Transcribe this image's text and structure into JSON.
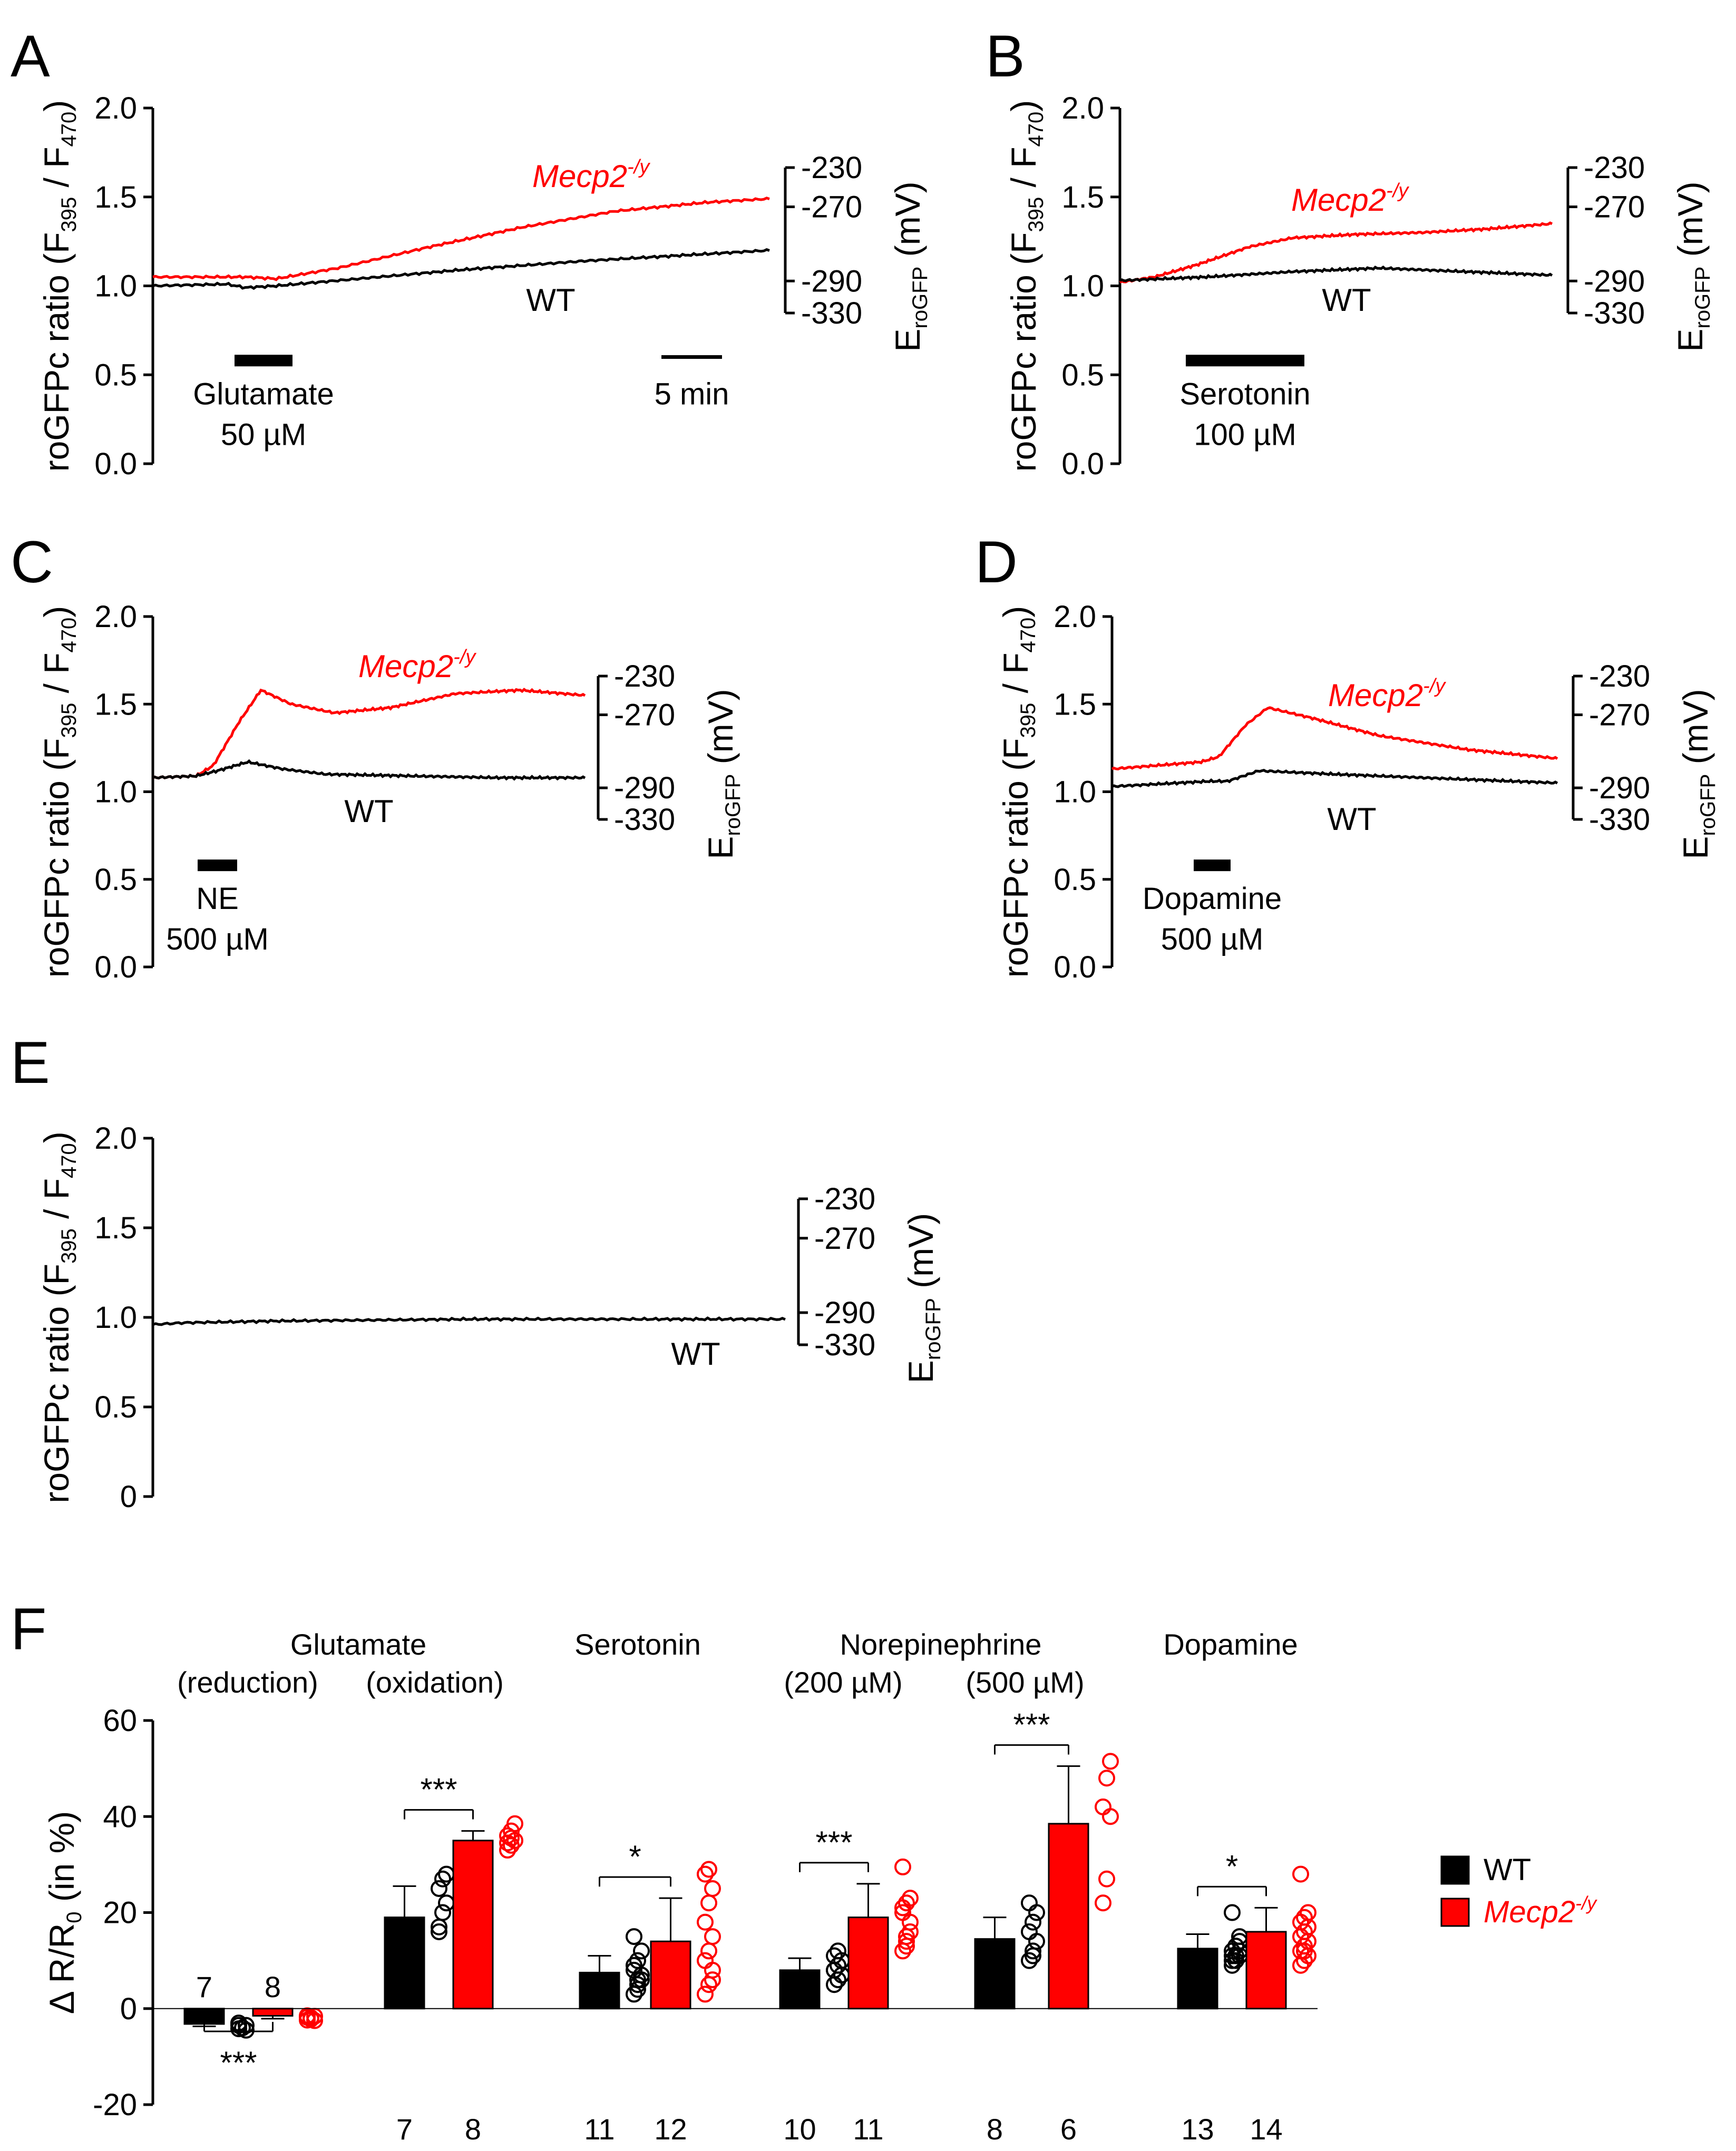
{
  "figure": {
    "ylabel_main": "roGFPc ratio (F",
    "ylabel_sub1": "395",
    "ylabel_mid": " / F",
    "ylabel_sub2": "470",
    "ylabel_end": ")",
    "right_axis_label": "E",
    "right_axis_sub": "roGFP",
    "right_axis_unit": "(mV)",
    "mutant_label": "Mecp2",
    "mutant_sup": "-/y",
    "wt_label": "WT"
  },
  "chart_data": [
    {
      "panel": "A",
      "type": "line",
      "yticks": [
        "2.0",
        "1.5",
        "1.0",
        "0.5",
        "0.0"
      ],
      "ylim": [
        0,
        2
      ],
      "right_ticks": [
        "-230",
        "-270",
        "-290",
        "-330"
      ],
      "stimulus": {
        "name": "Glutamate",
        "conc": "50 µM"
      },
      "scale_bar": "5 min",
      "series": [
        {
          "name": "Mecp2-/y",
          "color": "#ff0000",
          "t": [
            0,
            0.15,
            0.2,
            0.3,
            0.45,
            0.6,
            0.75,
            0.9,
            1.0
          ],
          "y": [
            1.05,
            1.05,
            1.04,
            1.1,
            1.22,
            1.33,
            1.42,
            1.47,
            1.49
          ]
        },
        {
          "name": "WT",
          "color": "#000000",
          "t": [
            0,
            0.12,
            0.15,
            0.2,
            0.3,
            0.5,
            0.7,
            0.9,
            1.0
          ],
          "y": [
            1.0,
            1.01,
            0.99,
            1.0,
            1.03,
            1.09,
            1.14,
            1.18,
            1.2
          ]
        }
      ]
    },
    {
      "panel": "B",
      "type": "line",
      "yticks": [
        "2.0",
        "1.5",
        "1.0",
        "0.5",
        "0.0"
      ],
      "ylim": [
        0,
        2
      ],
      "right_ticks": [
        "-230",
        "-270",
        "-290",
        "-330"
      ],
      "stimulus": {
        "name": "Serotonin",
        "conc": "100 µM"
      },
      "series": [
        {
          "name": "Mecp2-/y",
          "color": "#ff0000",
          "t": [
            0,
            0.08,
            0.18,
            0.3,
            0.4,
            0.55,
            0.7,
            0.85,
            1.0
          ],
          "y": [
            1.02,
            1.05,
            1.12,
            1.22,
            1.27,
            1.29,
            1.3,
            1.32,
            1.35
          ]
        },
        {
          "name": "WT",
          "color": "#000000",
          "t": [
            0,
            0.2,
            0.4,
            0.6,
            0.8,
            1.0
          ],
          "y": [
            1.03,
            1.05,
            1.08,
            1.1,
            1.08,
            1.06
          ]
        }
      ]
    },
    {
      "panel": "C",
      "type": "line",
      "yticks": [
        "2.0",
        "1.5",
        "1.0",
        "0.5",
        "0.0"
      ],
      "ylim": [
        0,
        2
      ],
      "right_ticks": [
        "-230",
        "-270",
        "-290",
        "-330"
      ],
      "stimulus": {
        "name": "NE",
        "conc": "500 µM"
      },
      "series": [
        {
          "name": "Mecp2-/y",
          "color": "#ff0000",
          "t": [
            0,
            0.1,
            0.14,
            0.2,
            0.25,
            0.32,
            0.42,
            0.55,
            0.7,
            0.85,
            1.0
          ],
          "y": [
            1.08,
            1.09,
            1.15,
            1.4,
            1.58,
            1.5,
            1.45,
            1.48,
            1.56,
            1.58,
            1.55
          ]
        },
        {
          "name": "WT",
          "color": "#000000",
          "t": [
            0,
            0.1,
            0.15,
            0.22,
            0.3,
            0.4,
            0.6,
            0.8,
            1.0
          ],
          "y": [
            1.08,
            1.09,
            1.12,
            1.17,
            1.13,
            1.1,
            1.09,
            1.08,
            1.08
          ]
        }
      ]
    },
    {
      "panel": "D",
      "type": "line",
      "yticks": [
        "2.0",
        "1.5",
        "1.0",
        "0.5",
        "0.0"
      ],
      "ylim": [
        0,
        2
      ],
      "right_ticks": [
        "-230",
        "-270",
        "-290",
        "-330"
      ],
      "stimulus": {
        "name": "Dopamine",
        "conc": "500 µM"
      },
      "series": [
        {
          "name": "Mecp2-/y",
          "color": "#ff0000",
          "t": [
            0,
            0.2,
            0.24,
            0.3,
            0.35,
            0.45,
            0.6,
            0.8,
            1.0
          ],
          "y": [
            1.13,
            1.17,
            1.2,
            1.38,
            1.48,
            1.42,
            1.32,
            1.24,
            1.19
          ]
        },
        {
          "name": "WT",
          "color": "#000000",
          "t": [
            0,
            0.22,
            0.26,
            0.33,
            0.5,
            0.7,
            0.9,
            1.0
          ],
          "y": [
            1.03,
            1.06,
            1.06,
            1.12,
            1.1,
            1.08,
            1.06,
            1.05
          ]
        }
      ]
    },
    {
      "panel": "E",
      "type": "line",
      "yticks": [
        "2.0",
        "1.5",
        "1.0",
        "0.5",
        "0"
      ],
      "ylim": [
        0,
        2
      ],
      "right_ticks": [
        "-230",
        "-270",
        "-290",
        "-330"
      ],
      "series": [
        {
          "name": "WT",
          "color": "#000000",
          "t": [
            0,
            0.05,
            0.2,
            0.5,
            0.8,
            1.0
          ],
          "y": [
            0.96,
            0.97,
            0.98,
            0.99,
            0.99,
            0.99
          ]
        }
      ]
    },
    {
      "panel": "F",
      "type": "bar",
      "ylabel": "Δ R/R",
      "ylabel_sub": "0",
      "ylabel_unit": " (in %)",
      "yticks": [
        "60",
        "40",
        "20",
        "0",
        "-20"
      ],
      "ylim": [
        -20,
        60
      ],
      "group_titles": [
        {
          "label": "Glutamate",
          "sub": ""
        },
        {
          "label": "(reduction)",
          "sub": ""
        },
        {
          "label": "(oxidation)",
          "sub": ""
        },
        {
          "label": "Serotonin",
          "sub": ""
        },
        {
          "label": "Norepinephrine",
          "sub": ""
        },
        {
          "label": "(200 µM)",
          "sub": ""
        },
        {
          "label": "(500 µM)",
          "sub": ""
        },
        {
          "label": "Dopamine",
          "sub": ""
        }
      ],
      "categories": [
        "Glutamate (reduction)",
        "Glutamate (oxidation)",
        "Serotonin",
        "Norepinephrine (200 µM)",
        "Norepinephrine (500 µM)",
        "Dopamine"
      ],
      "series": [
        {
          "name": "WT",
          "color": "#000000",
          "values": [
            -3.2,
            19,
            7.5,
            8,
            14.5,
            12.5
          ],
          "errors": [
            0.5,
            6.5,
            3.5,
            2.5,
            4.5,
            3
          ],
          "n": [
            "7",
            "7",
            "11",
            "10",
            "8",
            "13"
          ],
          "points": [
            [
              -3.5,
              -4,
              -4.5,
              -3,
              -4,
              -3.5,
              -4.2
            ],
            [
              16,
              20,
              22,
              25,
              27,
              28,
              17
            ],
            [
              3,
              4,
              6,
              8,
              10,
              12,
              15,
              5,
              7,
              9,
              6
            ],
            [
              5,
              6,
              7,
              8,
              9,
              10,
              11,
              12,
              7,
              8
            ],
            [
              10,
              12,
              14,
              16,
              18,
              20,
              22,
              11
            ],
            [
              9,
              10,
              11,
              12,
              13,
              14,
              20,
              11,
              12,
              10,
              13,
              15,
              11
            ]
          ]
        },
        {
          "name": "Mecp2-/y",
          "color": "#ff0000",
          "values": [
            -1.5,
            35,
            14,
            19,
            38.5,
            16
          ],
          "errors": [
            0.6,
            2,
            9,
            7,
            12,
            5
          ],
          "n": [
            "8",
            "8",
            "12",
            "11",
            "6",
            "14"
          ],
          "points": [
            [
              -1.5,
              -2,
              -2.5,
              -1.8,
              -2.2,
              -1.6,
              -2.4,
              -1.9
            ],
            [
              33,
              34,
              35,
              36,
              37,
              38.5,
              34.5,
              35.5
            ],
            [
              3,
              5,
              8,
              10,
              12,
              15,
              18,
              22,
              25,
              28,
              29,
              6
            ],
            [
              12,
              14,
              16,
              20,
              22,
              23,
              29.5,
              13,
              18,
              21,
              15
            ],
            [
              22,
              27,
              40,
              42,
              48,
              51.5
            ],
            [
              9,
              10,
              11,
              12,
              13,
              14,
              15,
              16,
              17,
              18,
              19,
              20,
              28,
              12
            ]
          ]
        }
      ],
      "significance": [
        {
          "label": "***",
          "pair": 0,
          "position": "below"
        },
        {
          "label": "***",
          "pair": 1,
          "position": "above"
        },
        {
          "label": "*",
          "pair": 2,
          "position": "above"
        },
        {
          "label": "***",
          "pair": 3,
          "position": "above"
        },
        {
          "label": "***",
          "pair": 4,
          "position": "above"
        },
        {
          "label": "*",
          "pair": 5,
          "position": "above"
        }
      ],
      "legend": [
        {
          "label": "WT",
          "color": "#000000"
        },
        {
          "label": "Mecp2",
          "sup": "-/y",
          "color": "#ff0000"
        }
      ]
    }
  ]
}
